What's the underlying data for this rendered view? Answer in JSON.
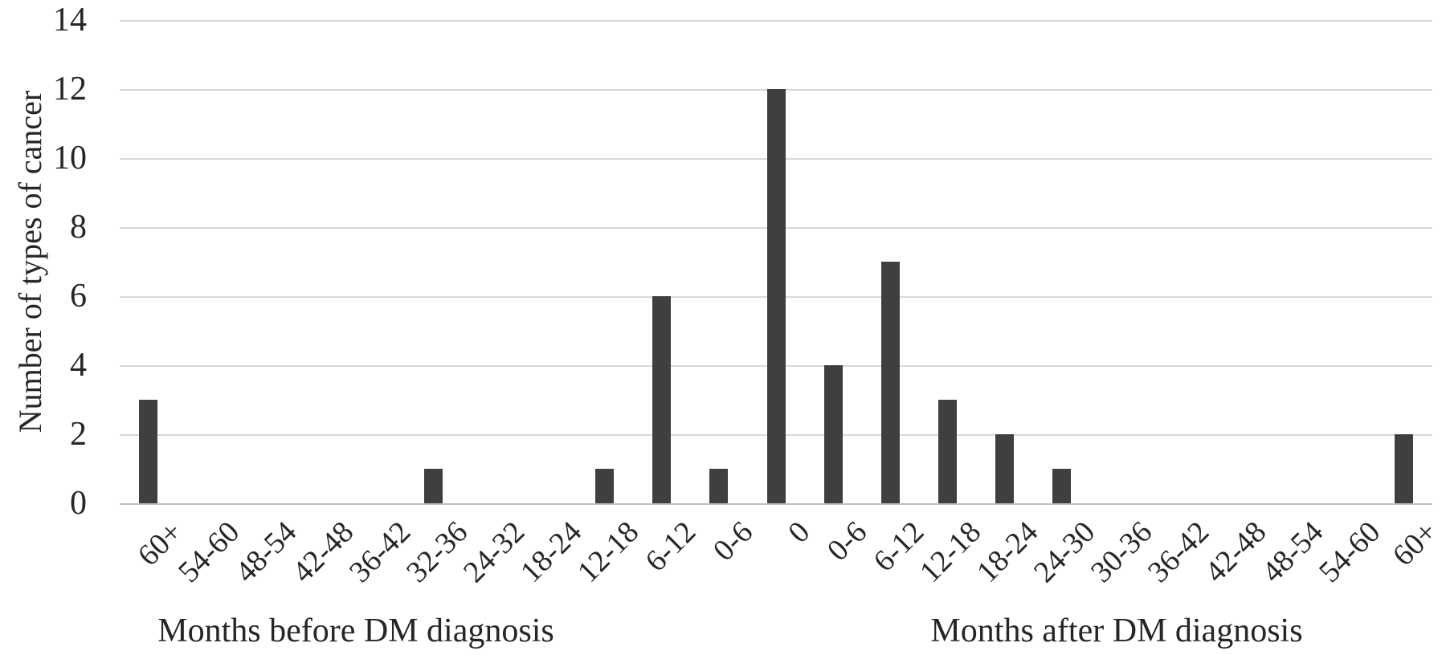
{
  "chart_data": {
    "type": "bar",
    "title": "",
    "ylabel": "Number of types of cancer",
    "x_group_labels": {
      "left": "Months before DM diagnosis",
      "right": "Months after DM diagnosis"
    },
    "categories": [
      "60+",
      "54-60",
      "48-54",
      "42-48",
      "36-42",
      "32-36",
      "24-32",
      "18-24",
      "12-18",
      "6-12",
      "0-6",
      "0",
      "0-6",
      "6-12",
      "12-18",
      "18-24",
      "24-30",
      "30-36",
      "36-42",
      "42-48",
      "48-54",
      "54-60",
      "60+"
    ],
    "values": [
      3,
      0,
      0,
      0,
      0,
      1,
      0,
      0,
      1,
      6,
      1,
      12,
      4,
      7,
      3,
      2,
      1,
      0,
      0,
      0,
      0,
      0,
      2
    ],
    "ylim": [
      0,
      14
    ],
    "yticks": [
      0,
      2,
      4,
      6,
      8,
      10,
      12,
      14
    ],
    "grid": true,
    "legend": false,
    "xtick_rotation_deg": 45,
    "bar_color": "#3f3f3f",
    "gridline_color": "#d9d9d9",
    "axis_line_color": "#bfbfbf",
    "text_color": "#262626"
  }
}
